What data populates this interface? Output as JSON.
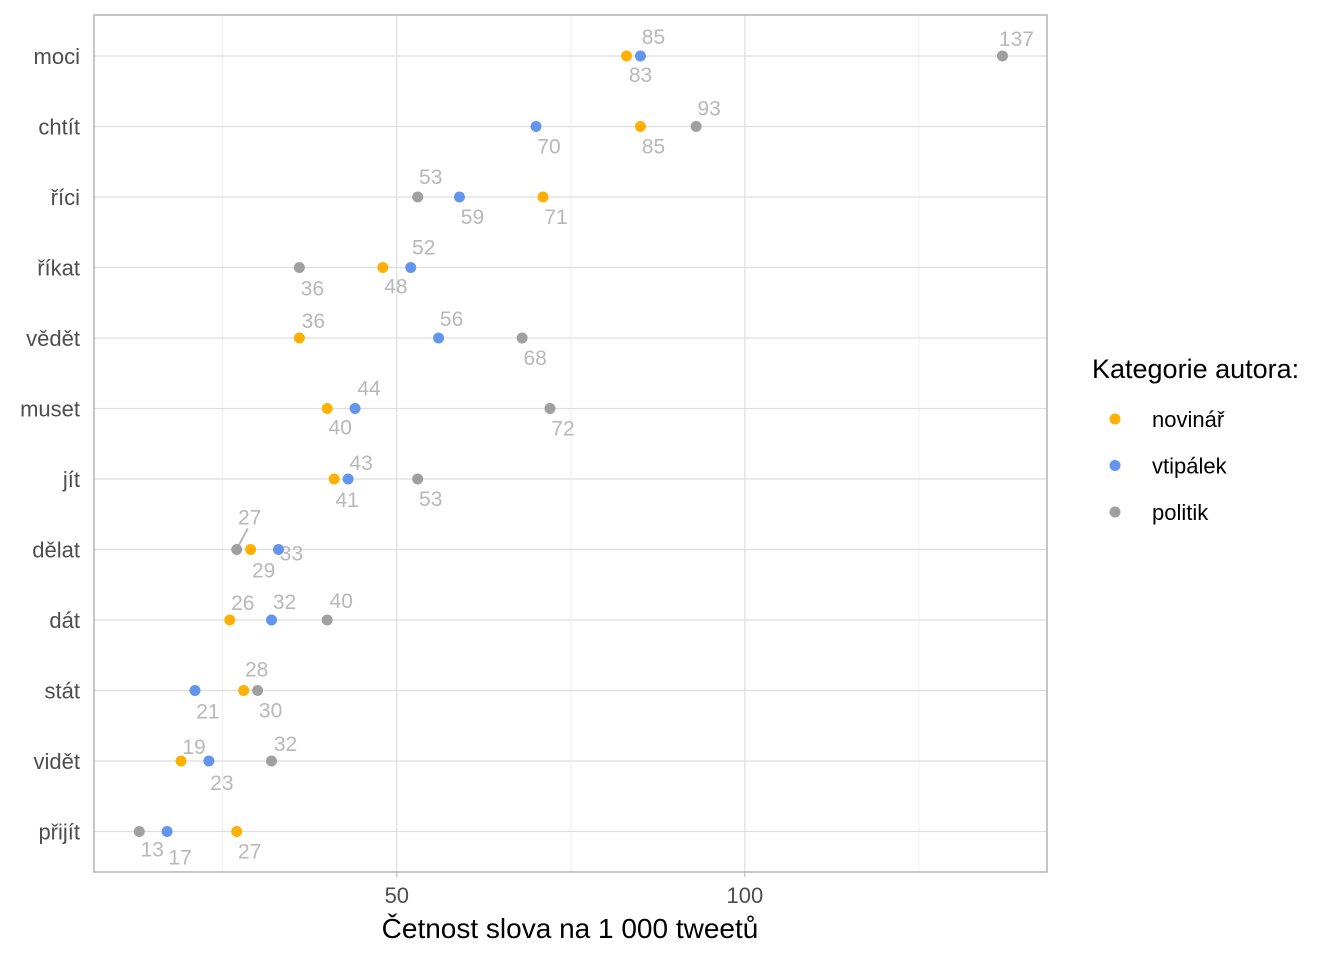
{
  "chart_data": {
    "type": "scatter",
    "title": "",
    "xlabel": "Četnost slova na 1 000 tweetů",
    "ylabel": "",
    "xlim": [
      6.5,
      143.4
    ],
    "xticks": [
      50,
      100
    ],
    "grid": true,
    "legend": {
      "title": "Kategorie autora:",
      "placement": "right"
    },
    "categories": [
      "moci",
      "chtít",
      "říci",
      "říkat",
      "vědět",
      "muset",
      "jít",
      "dělat",
      "dát",
      "stát",
      "vidět",
      "přijít"
    ],
    "series": [
      {
        "name": "novinář",
        "color": "#FFB000",
        "values": [
          83,
          85,
          71,
          48,
          36,
          40,
          41,
          29,
          26,
          28,
          19,
          27
        ]
      },
      {
        "name": "vtipálek",
        "color": "#6495ED",
        "values": [
          85,
          70,
          59,
          52,
          56,
          44,
          43,
          33,
          32,
          21,
          23,
          17
        ]
      },
      {
        "name": "politik",
        "color": "#A0A0A0",
        "values": [
          137,
          93,
          53,
          36,
          68,
          72,
          53,
          27,
          40,
          30,
          32,
          13
        ]
      }
    ]
  }
}
